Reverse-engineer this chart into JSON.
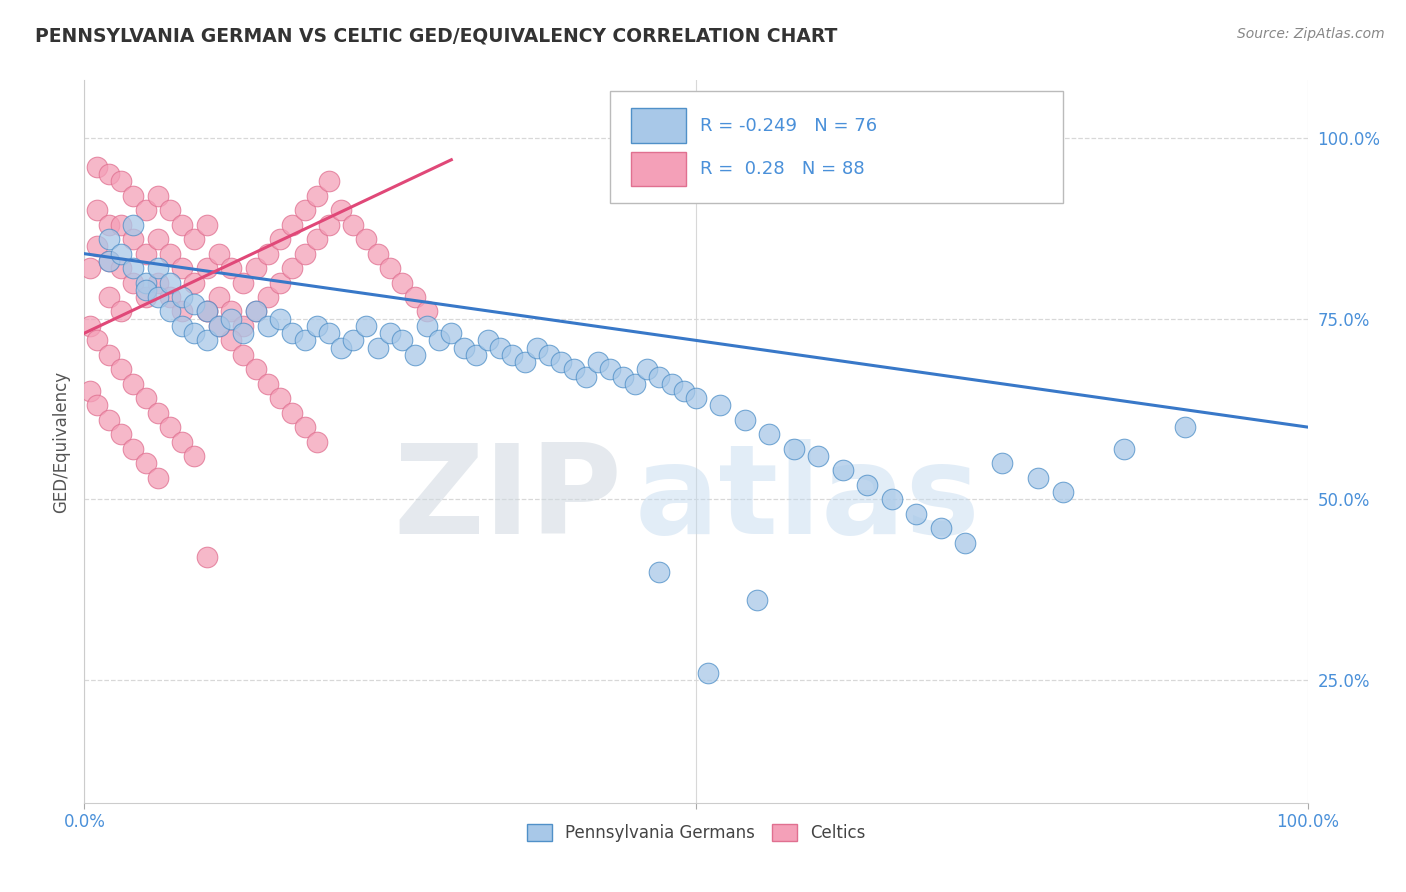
{
  "title": "PENNSYLVANIA GERMAN VS CELTIC GED/EQUIVALENCY CORRELATION CHART",
  "source": "Source: ZipAtlas.com",
  "ylabel": "GED/Equivalency",
  "ytick_labels": [
    "100.0%",
    "75.0%",
    "50.0%",
    "25.0%"
  ],
  "ytick_positions": [
    1.0,
    0.75,
    0.5,
    0.25
  ],
  "xlim": [
    0.0,
    1.0
  ],
  "ylim": [
    0.08,
    1.08
  ],
  "blue_color": "#a8c8e8",
  "pink_color": "#f4a0b8",
  "blue_line_color": "#3878c8",
  "pink_line_color": "#e04878",
  "legend_blue_label": "Pennsylvania Germans",
  "legend_pink_label": "Celtics",
  "R_blue": -0.249,
  "N_blue": 76,
  "R_pink": 0.28,
  "N_pink": 88,
  "watermark_zip": "ZIP",
  "watermark_atlas": "atlas",
  "background_color": "#ffffff",
  "grid_color": "#d8d8d8",
  "blue_scatter_x": [
    0.02,
    0.02,
    0.03,
    0.04,
    0.04,
    0.05,
    0.05,
    0.06,
    0.06,
    0.07,
    0.07,
    0.08,
    0.08,
    0.09,
    0.09,
    0.1,
    0.1,
    0.11,
    0.12,
    0.13,
    0.14,
    0.15,
    0.16,
    0.17,
    0.18,
    0.19,
    0.2,
    0.21,
    0.22,
    0.23,
    0.24,
    0.25,
    0.26,
    0.27,
    0.28,
    0.29,
    0.3,
    0.31,
    0.32,
    0.33,
    0.34,
    0.35,
    0.36,
    0.37,
    0.38,
    0.39,
    0.4,
    0.41,
    0.42,
    0.43,
    0.44,
    0.45,
    0.46,
    0.47,
    0.48,
    0.49,
    0.5,
    0.52,
    0.54,
    0.56,
    0.58,
    0.6,
    0.62,
    0.64,
    0.66,
    0.68,
    0.7,
    0.72,
    0.75,
    0.78,
    0.8,
    0.85,
    0.9,
    0.55,
    0.47,
    0.51
  ],
  "blue_scatter_y": [
    0.86,
    0.83,
    0.84,
    0.88,
    0.82,
    0.8,
    0.79,
    0.82,
    0.78,
    0.8,
    0.76,
    0.78,
    0.74,
    0.77,
    0.73,
    0.76,
    0.72,
    0.74,
    0.75,
    0.73,
    0.76,
    0.74,
    0.75,
    0.73,
    0.72,
    0.74,
    0.73,
    0.71,
    0.72,
    0.74,
    0.71,
    0.73,
    0.72,
    0.7,
    0.74,
    0.72,
    0.73,
    0.71,
    0.7,
    0.72,
    0.71,
    0.7,
    0.69,
    0.71,
    0.7,
    0.69,
    0.68,
    0.67,
    0.69,
    0.68,
    0.67,
    0.66,
    0.68,
    0.67,
    0.66,
    0.65,
    0.64,
    0.63,
    0.61,
    0.59,
    0.57,
    0.56,
    0.54,
    0.52,
    0.5,
    0.48,
    0.46,
    0.44,
    0.55,
    0.53,
    0.51,
    0.57,
    0.6,
    0.36,
    0.4,
    0.26
  ],
  "pink_scatter_x": [
    0.005,
    0.01,
    0.01,
    0.01,
    0.02,
    0.02,
    0.02,
    0.02,
    0.03,
    0.03,
    0.03,
    0.03,
    0.04,
    0.04,
    0.04,
    0.05,
    0.05,
    0.05,
    0.06,
    0.06,
    0.06,
    0.07,
    0.07,
    0.07,
    0.08,
    0.08,
    0.08,
    0.09,
    0.09,
    0.1,
    0.1,
    0.1,
    0.11,
    0.11,
    0.12,
    0.12,
    0.13,
    0.13,
    0.14,
    0.14,
    0.15,
    0.15,
    0.16,
    0.16,
    0.17,
    0.17,
    0.18,
    0.18,
    0.19,
    0.19,
    0.2,
    0.2,
    0.21,
    0.22,
    0.23,
    0.24,
    0.25,
    0.26,
    0.27,
    0.28,
    0.005,
    0.01,
    0.02,
    0.03,
    0.04,
    0.05,
    0.06,
    0.07,
    0.08,
    0.09,
    0.1,
    0.11,
    0.12,
    0.13,
    0.14,
    0.15,
    0.16,
    0.17,
    0.18,
    0.19,
    0.005,
    0.01,
    0.02,
    0.03,
    0.04,
    0.05,
    0.06,
    0.1
  ],
  "pink_scatter_y": [
    0.82,
    0.96,
    0.9,
    0.85,
    0.95,
    0.88,
    0.83,
    0.78,
    0.94,
    0.88,
    0.82,
    0.76,
    0.92,
    0.86,
    0.8,
    0.9,
    0.84,
    0.78,
    0.92,
    0.86,
    0.8,
    0.9,
    0.84,
    0.78,
    0.88,
    0.82,
    0.76,
    0.86,
    0.8,
    0.88,
    0.82,
    0.76,
    0.84,
    0.78,
    0.82,
    0.76,
    0.8,
    0.74,
    0.82,
    0.76,
    0.84,
    0.78,
    0.86,
    0.8,
    0.88,
    0.82,
    0.9,
    0.84,
    0.92,
    0.86,
    0.94,
    0.88,
    0.9,
    0.88,
    0.86,
    0.84,
    0.82,
    0.8,
    0.78,
    0.76,
    0.74,
    0.72,
    0.7,
    0.68,
    0.66,
    0.64,
    0.62,
    0.6,
    0.58,
    0.56,
    0.76,
    0.74,
    0.72,
    0.7,
    0.68,
    0.66,
    0.64,
    0.62,
    0.6,
    0.58,
    0.65,
    0.63,
    0.61,
    0.59,
    0.57,
    0.55,
    0.53,
    0.42
  ]
}
